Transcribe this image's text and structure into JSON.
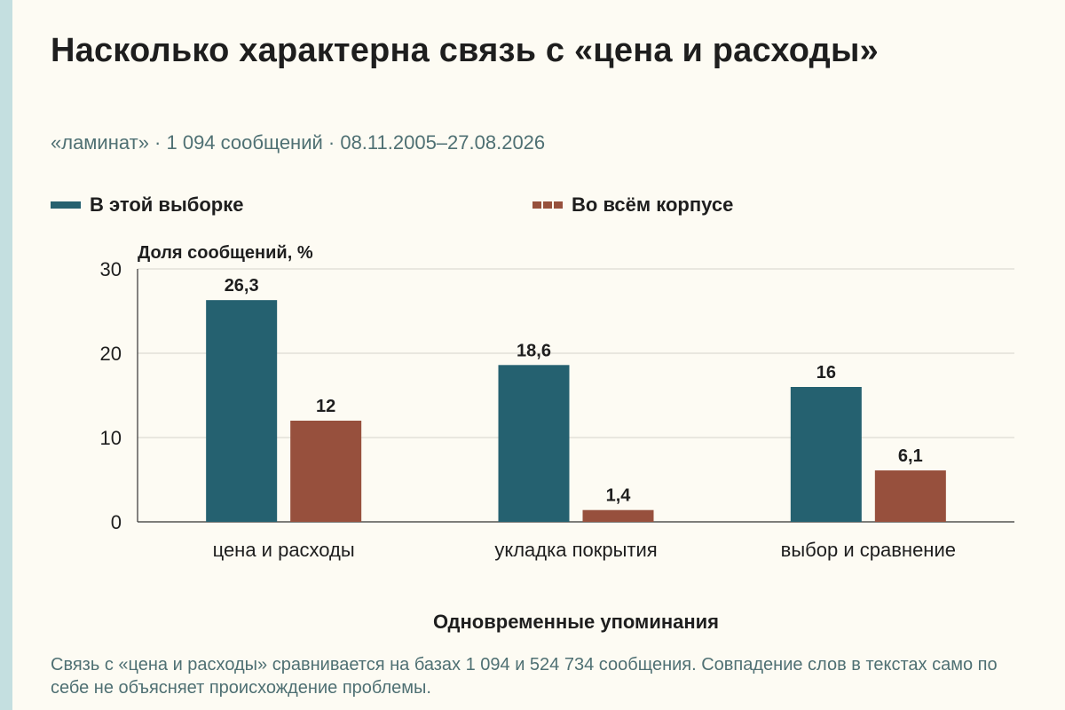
{
  "title": "Насколько характерна связь с «цена и расходы»",
  "subtitle": "«ламинат» · 1 094 сообщений · 08.11.2005–27.08.2026",
  "note": "Связь с «цена и расходы» сравнивается на базах 1 094 и 524 734 сообщения. Совпадение слов в текстах само по себе не объясняет происхождение проблемы.",
  "colors": {
    "sample": "#256170",
    "corpus": "#97503d",
    "grid": "#d5d3cb",
    "axis": "#333333"
  },
  "chart_data": {
    "type": "bar",
    "title": "Насколько характерна связь с «цена и расходы»",
    "ylabel": "Доля сообщений, %",
    "xlabel": "Одновременные упоминания",
    "ylim": [
      0,
      30
    ],
    "yticks": [
      0,
      10,
      20,
      30
    ],
    "categories": [
      "цена и расходы",
      "укладка покрытия",
      "выбор и сравнение"
    ],
    "series": [
      {
        "name": "В этой выборке",
        "values": [
          26.3,
          18.6,
          16
        ],
        "labels": [
          "26,3",
          "18,6",
          "16"
        ]
      },
      {
        "name": "Во всём корпусе",
        "values": [
          12,
          1.4,
          6.1
        ],
        "labels": [
          "12",
          "1,4",
          "6,1"
        ]
      }
    ],
    "grid": true,
    "legend_position": "top"
  }
}
